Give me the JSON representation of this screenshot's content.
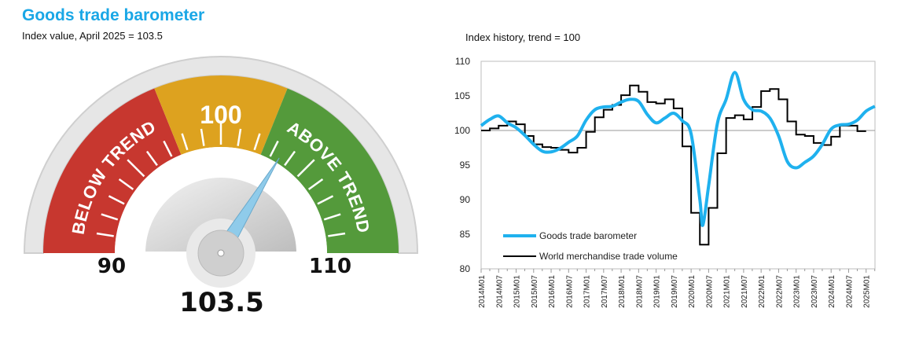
{
  "header": {
    "title": "Goods trade barometer",
    "subtitle": "Index value, April 2025 = 103.5"
  },
  "gauge": {
    "value": 103.5,
    "value_label": "103.5",
    "min": 90,
    "max": 110,
    "min_label": "90",
    "max_label": "110",
    "mid_label": "100",
    "below_label": "BELOW TREND",
    "above_label": "ABOVE TREND",
    "colors": {
      "below": "#c7372f",
      "trend": "#dda21f",
      "above": "#549a3b",
      "needle": "#8fcbea"
    }
  },
  "chart_data": {
    "type": "line",
    "title": "Index history, trend = 100",
    "xlabel": "",
    "ylabel": "",
    "ylim": [
      80,
      110
    ],
    "yticks": [
      80,
      85,
      90,
      95,
      100,
      105,
      110
    ],
    "reference_line": 100,
    "xticks": [
      "2014M01",
      "2014M07",
      "2015M01",
      "2015M07",
      "2016M01",
      "2016M07",
      "2017M01",
      "2017M07",
      "2018M01",
      "2018M07",
      "2019M01",
      "2019M07",
      "2020M01",
      "2020M07",
      "2021M01",
      "2021M07",
      "2022M01",
      "2022M07",
      "2023M01",
      "2023M07",
      "2024M01",
      "2024M07",
      "2025M01"
    ],
    "legend_position": "bottom-left",
    "series": [
      {
        "name": "Goods trade barometer",
        "color": "#1fb1ee",
        "style": "smooth",
        "months_from_2014M01": [
          0,
          3,
          6,
          9,
          12,
          15,
          18,
          21,
          24,
          27,
          30,
          33,
          36,
          39,
          42,
          45,
          48,
          51,
          54,
          57,
          60,
          63,
          66,
          69,
          72,
          75,
          76,
          78,
          81,
          84,
          87,
          90,
          93,
          96,
          99,
          102,
          105,
          108,
          111,
          114,
          117,
          120,
          123,
          126,
          129,
          132,
          135
        ],
        "values": [
          100.7,
          101.6,
          102.1,
          101.1,
          100.4,
          99.3,
          98.0,
          97.0,
          96.9,
          97.4,
          98.3,
          99.2,
          101.5,
          103.0,
          103.4,
          103.5,
          104.1,
          104.5,
          104.2,
          102.3,
          101.1,
          101.8,
          102.5,
          101.4,
          99.5,
          90.0,
          86.3,
          92.0,
          101.0,
          104.5,
          108.4,
          104.5,
          103.0,
          102.8,
          101.8,
          99.2,
          95.5,
          94.6,
          95.4,
          96.3,
          98.0,
          100.2,
          100.8,
          100.9,
          101.5,
          102.8,
          103.5
        ]
      },
      {
        "name": "World merchandise trade volume",
        "color": "#000000",
        "style": "step-quarterly",
        "quarters_from_2014Q1": [
          0,
          1,
          2,
          3,
          4,
          5,
          6,
          7,
          8,
          9,
          10,
          11,
          12,
          13,
          14,
          15,
          16,
          17,
          18,
          19,
          20,
          21,
          22,
          23,
          24,
          25,
          26,
          27,
          28,
          29,
          30,
          31,
          32,
          33,
          34,
          35,
          36,
          37,
          38,
          39,
          40,
          41,
          42,
          43
        ],
        "values": [
          100.0,
          100.3,
          100.7,
          101.3,
          100.9,
          99.2,
          98.0,
          97.6,
          97.5,
          97.2,
          96.8,
          97.5,
          99.8,
          101.9,
          103.0,
          103.7,
          105.1,
          106.5,
          105.6,
          104.1,
          103.9,
          104.5,
          103.2,
          97.7,
          88.1,
          83.5,
          88.8,
          96.7,
          101.8,
          102.2,
          101.6,
          103.4,
          105.7,
          106.0,
          104.5,
          101.3,
          99.4,
          99.2,
          98.2,
          97.9,
          99.1,
          100.7,
          100.7,
          99.9
        ]
      }
    ]
  }
}
